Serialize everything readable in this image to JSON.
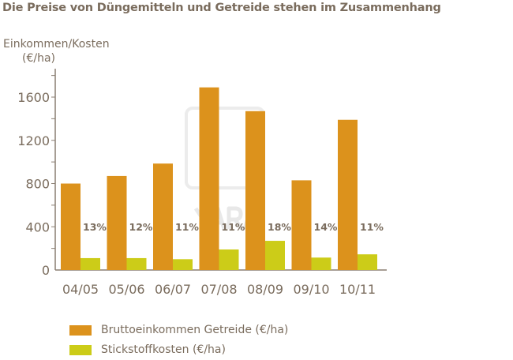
{
  "chart_data": {
    "type": "bar",
    "title": "Die Preise von Düngemitteln und Getreide stehen im Zusammenhang",
    "ylabel_line1": "Einkommen/Kosten",
    "ylabel_line2": "(€/ha)",
    "categories": [
      "04/05",
      "05/06",
      "06/07",
      "07/08",
      "08/09",
      "09/10",
      "10/11"
    ],
    "series": [
      {
        "name": "Bruttoeinkommen Getreide (€/ha)",
        "color": "#dc921c",
        "values": [
          800,
          870,
          985,
          1690,
          1470,
          830,
          1390
        ]
      },
      {
        "name": "Stickstoffkosten (€/ha)",
        "color": "#cccc18",
        "values": [
          110,
          110,
          100,
          190,
          270,
          115,
          145
        ]
      }
    ],
    "annotations": [
      "13%",
      "12%",
      "11%",
      "11%",
      "18%",
      "14%",
      "11%"
    ],
    "yticks": [
      0,
      400,
      800,
      1200,
      1600
    ],
    "ylim": [
      0,
      1850
    ],
    "grid": false,
    "legend": "bottom-left",
    "watermark": "YARA"
  }
}
